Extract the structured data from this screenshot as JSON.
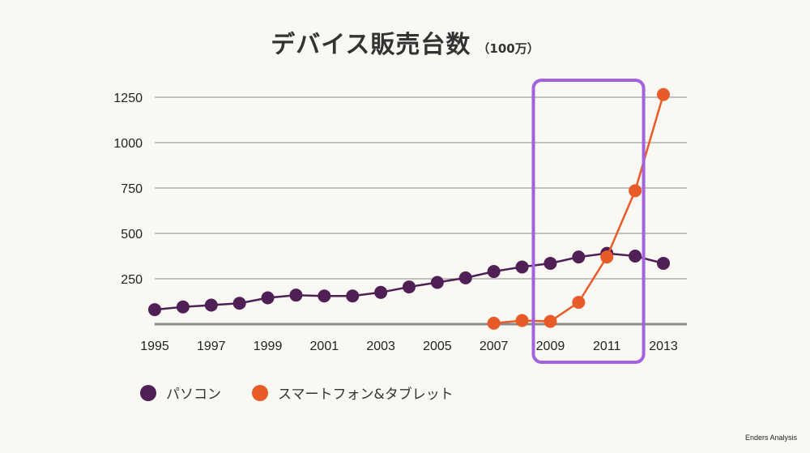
{
  "colors": {
    "pc": "#4f1f55",
    "mobile": "#e85a28",
    "highlight": "#a463de",
    "grid": "#8a8a8a",
    "baseline": "#8a8a8a"
  },
  "chart_data": {
    "type": "line",
    "title": "デバイス販売台数",
    "subtitle": "（100万）",
    "xlabel": "",
    "ylabel": "",
    "xlim": [
      1995,
      2013
    ],
    "ylim": [
      0,
      1250
    ],
    "x_ticks": [
      "1995",
      "1997",
      "1999",
      "2001",
      "2003",
      "2005",
      "2007",
      "2009",
      "2011",
      "2013"
    ],
    "y_ticks": [
      "250",
      "500",
      "750",
      "1000",
      "1250"
    ],
    "grid": true,
    "legend_position": "bottom-left",
    "highlight_range": [
      2008.4,
      2012.3
    ],
    "series": [
      {
        "name": "パソコン",
        "color_key": "pc",
        "x": [
          1995,
          1996,
          1997,
          1998,
          1999,
          2000,
          2001,
          2002,
          2003,
          2004,
          2005,
          2006,
          2007,
          2008,
          2009,
          2010,
          2011,
          2012,
          2013
        ],
        "values": [
          80,
          95,
          105,
          115,
          145,
          160,
          155,
          155,
          175,
          205,
          230,
          255,
          290,
          315,
          335,
          370,
          390,
          375,
          335
        ]
      },
      {
        "name": "スマートフォン&タブレット",
        "color_key": "mobile",
        "x": [
          2007,
          2008,
          2009,
          2010,
          2011,
          2012,
          2013
        ],
        "values": [
          5,
          20,
          15,
          120,
          370,
          735,
          1265
        ]
      }
    ]
  },
  "source": "Enders Analysis"
}
